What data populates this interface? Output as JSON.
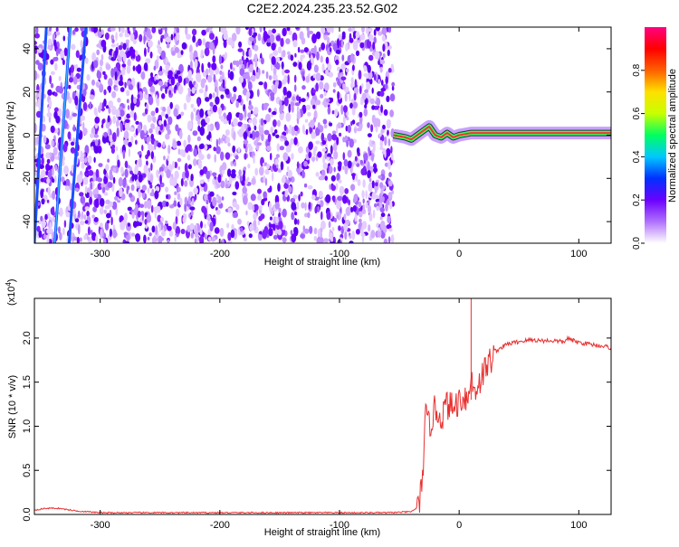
{
  "figure": {
    "title": "C2E2.2024.235.23.52.G02"
  },
  "chart_data": [
    {
      "type": "heatmap",
      "xlabel": "Height of straight line (km)",
      "ylabel": "Frequency (Hz)",
      "xlim": [
        -355,
        127
      ],
      "ylim": [
        -50,
        50
      ],
      "xticks": [
        -300,
        -200,
        -100,
        0,
        100
      ],
      "yticks": [
        -40,
        -20,
        0,
        20,
        40
      ],
      "grid": false,
      "colorbar": {
        "label": "Normalized spectral amplitude",
        "range": [
          0.0,
          1.0
        ],
        "ticks": [
          0.0,
          0.2,
          0.4,
          0.6,
          0.8
        ],
        "colormap": [
          "#ffffff",
          "#b070ff",
          "#6a00ff",
          "#0030ff",
          "#00c8ff",
          "#00ff60",
          "#c8ff00",
          "#ffe000",
          "#ff6000",
          "#ff0000",
          "#ff0080"
        ]
      },
      "description_regions": {
        "noise_region_x": [
          -355,
          -55
        ],
        "signal_trace": {
          "x": [
            -55,
            -45,
            -40,
            -35,
            -30,
            -25,
            -20,
            -15,
            -10,
            -5,
            0,
            10,
            20,
            40,
            60,
            80,
            100,
            127
          ],
          "y": [
            0,
            -1,
            -2,
            0,
            2,
            4,
            0,
            -1,
            1,
            -1,
            0,
            1,
            1,
            1,
            1,
            1,
            1,
            1
          ]
        }
      }
    },
    {
      "type": "line",
      "xlabel": "Height of straight line (km)",
      "ylabel": "SNR (10 * v/v)",
      "y_multiplier": "(x10",
      "y_multiplier_exp": "4",
      "y_multiplier_close": ")",
      "xlim": [
        -355,
        127
      ],
      "ylim": [
        0.0,
        2.45
      ],
      "xticks": [
        -300,
        -200,
        -100,
        0,
        100
      ],
      "yticks": [
        0.0,
        0.5,
        1.0,
        1.5,
        2.0
      ],
      "ytick_labels": [
        "0.0",
        "0.5",
        "1.0",
        "1.5",
        "2.0"
      ],
      "series": [
        {
          "color": "#e83030",
          "x": [
            -355,
            -345,
            -335,
            -320,
            -300,
            -250,
            -200,
            -150,
            -100,
            -60,
            -40,
            -33,
            -30,
            -28,
            -25,
            -20,
            -15,
            -10,
            -5,
            0,
            5,
            8,
            10,
            12,
            15,
            20,
            25,
            30,
            40,
            50,
            60,
            70,
            80,
            88,
            90,
            95,
            100,
            110,
            120,
            127
          ],
          "y": [
            0.05,
            0.07,
            0.07,
            0.04,
            0.02,
            0.02,
            0.02,
            0.02,
            0.02,
            0.02,
            0.03,
            0.1,
            0.6,
            1.1,
            1.0,
            1.2,
            1.1,
            1.25,
            1.2,
            1.3,
            1.35,
            1.3,
            1.6,
            1.4,
            1.45,
            1.6,
            1.72,
            1.85,
            1.93,
            1.96,
            1.98,
            1.97,
            1.97,
            1.95,
            2.0,
            1.97,
            1.95,
            1.93,
            1.91,
            1.89
          ]
        }
      ]
    }
  ]
}
